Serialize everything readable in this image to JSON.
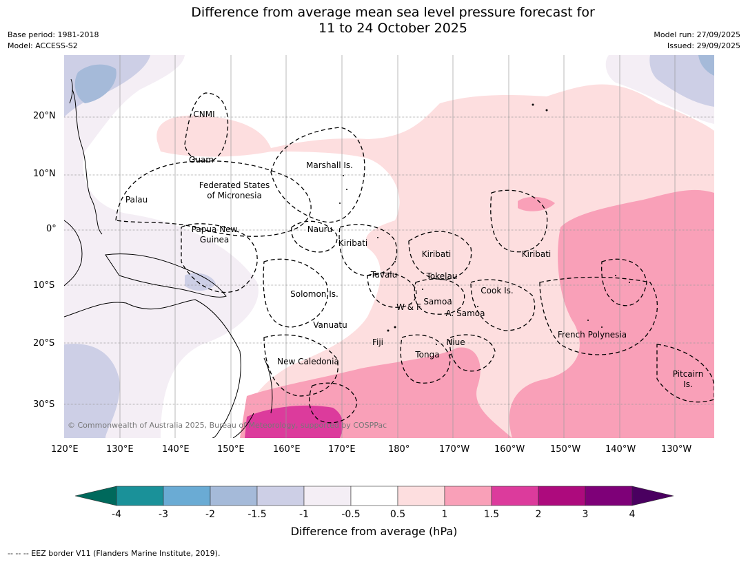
{
  "title_line1": "Difference from average mean sea level pressure forecast for",
  "title_line2": "11 to 24 October 2025",
  "meta": {
    "base_period": "Base period: 1981-2018",
    "model": "Model: ACCESS-S2",
    "model_run": "Model run: 27/09/2025",
    "issued": "Issued: 29/09/2025"
  },
  "map": {
    "lon_ticks": [
      "120°E",
      "130°E",
      "140°E",
      "150°E",
      "160°E",
      "170°E",
      "180°",
      "170°W",
      "160°W",
      "150°W",
      "140°W",
      "130°W"
    ],
    "lat_ticks": [
      "20°N",
      "10°N",
      "0°",
      "10°S",
      "20°S",
      "30°S"
    ],
    "copyright": "© Commonwealth of Australia 2025, Bureau of Meteorology, supported by COSPPac",
    "labels": [
      {
        "id": "cnmi",
        "text": "CNMI"
      },
      {
        "id": "guam",
        "text": "Guam"
      },
      {
        "id": "marshall",
        "text": "Marshall Is."
      },
      {
        "id": "fsm1",
        "text": "Federated States"
      },
      {
        "id": "fsm2",
        "text": "of Micronesia"
      },
      {
        "id": "palau",
        "text": "Palau"
      },
      {
        "id": "png1",
        "text": "Papua New"
      },
      {
        "id": "png2",
        "text": "Guinea"
      },
      {
        "id": "nauru",
        "text": "Nauru"
      },
      {
        "id": "kiribati1",
        "text": "Kiribati"
      },
      {
        "id": "kiribati2",
        "text": "Kiribati"
      },
      {
        "id": "kiribati3",
        "text": "Kiribati"
      },
      {
        "id": "tuvalu",
        "text": "Tuvalu"
      },
      {
        "id": "tokelau",
        "text": "Tokelau"
      },
      {
        "id": "cook",
        "text": "Cook Is."
      },
      {
        "id": "solomon",
        "text": "Solomon Is."
      },
      {
        "id": "samoa",
        "text": "Samoa"
      },
      {
        "id": "wf",
        "text": "W & F"
      },
      {
        "id": "asamoa",
        "text": "A. Samoa"
      },
      {
        "id": "vanuatu",
        "text": "Vanuatu"
      },
      {
        "id": "fiji",
        "text": "Fiji"
      },
      {
        "id": "niue",
        "text": "Niue"
      },
      {
        "id": "frpoly",
        "text": "French Polynesia"
      },
      {
        "id": "tonga",
        "text": "Tonga"
      },
      {
        "id": "newcal",
        "text": "New Caledonia"
      },
      {
        "id": "pitcairn1",
        "text": "Pitcairn"
      },
      {
        "id": "pitcairn2",
        "text": "Is."
      }
    ]
  },
  "colorbar": {
    "title": "Difference from average (hPa)",
    "ticks": [
      "-4",
      "-3",
      "-2",
      "-1.5",
      "-1",
      "-0.5",
      "0.5",
      "1",
      "1.5",
      "2",
      "3",
      "4"
    ],
    "low_extend_color": "#00695c",
    "high_extend_color": "#4a0060",
    "colors": [
      "#1a9199",
      "#6aabd4",
      "#a5bad9",
      "#cdcfe6",
      "#f4eef5",
      "#ffffff",
      "#fddedf",
      "#f9a0b8",
      "#dc3b9c",
      "#ad0a7d",
      "#7e0078"
    ]
  },
  "footnote": "--  --  -- EEZ border V11 (Flanders Marine Institute, 2019)."
}
